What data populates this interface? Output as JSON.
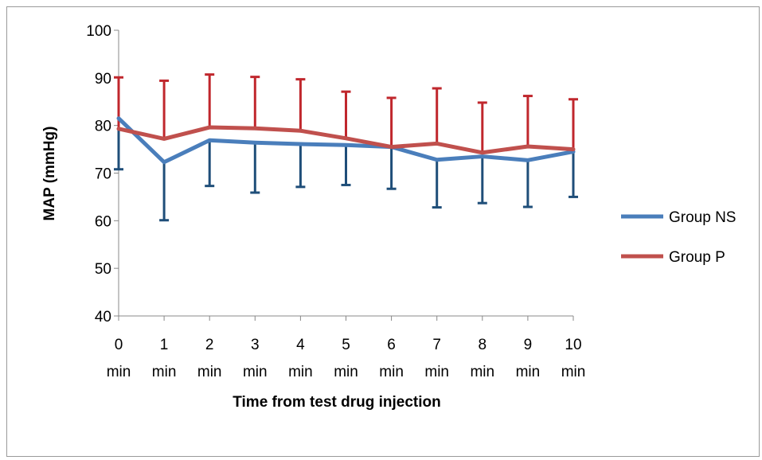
{
  "chart_data": {
    "type": "line",
    "title": "",
    "xlabel": "Time from test drug injection",
    "ylabel": "MAP (mmHg)",
    "ylim": [
      40,
      100
    ],
    "yticks": [
      40,
      50,
      60,
      70,
      80,
      90,
      100
    ],
    "categories": [
      "0",
      "1",
      "2",
      "3",
      "4",
      "5",
      "6",
      "7",
      "8",
      "9",
      "10"
    ],
    "category_unit": "min",
    "grid": false,
    "legend_position": "right",
    "series": [
      {
        "name": "Group NS",
        "color": "#4a7ebb",
        "error_color": "#1f4e79",
        "error_direction": "down",
        "values": [
          81.5,
          72.3,
          76.9,
          76.4,
          76.1,
          75.9,
          75.5,
          72.8,
          73.5,
          72.7,
          74.5
        ],
        "errors": [
          10.7,
          12.2,
          9.6,
          10.5,
          9.0,
          8.4,
          8.8,
          10.0,
          9.8,
          9.8,
          9.5
        ]
      },
      {
        "name": "Group P",
        "color": "#c0504d",
        "error_color": "#c0272d",
        "error_direction": "up",
        "values": [
          79.3,
          77.2,
          79.6,
          79.4,
          78.9,
          77.3,
          75.5,
          76.2,
          74.3,
          75.6,
          75.0
        ],
        "errors": [
          10.8,
          12.2,
          11.1,
          10.8,
          10.8,
          9.8,
          10.3,
          11.6,
          10.5,
          10.6,
          10.5
        ]
      }
    ]
  }
}
